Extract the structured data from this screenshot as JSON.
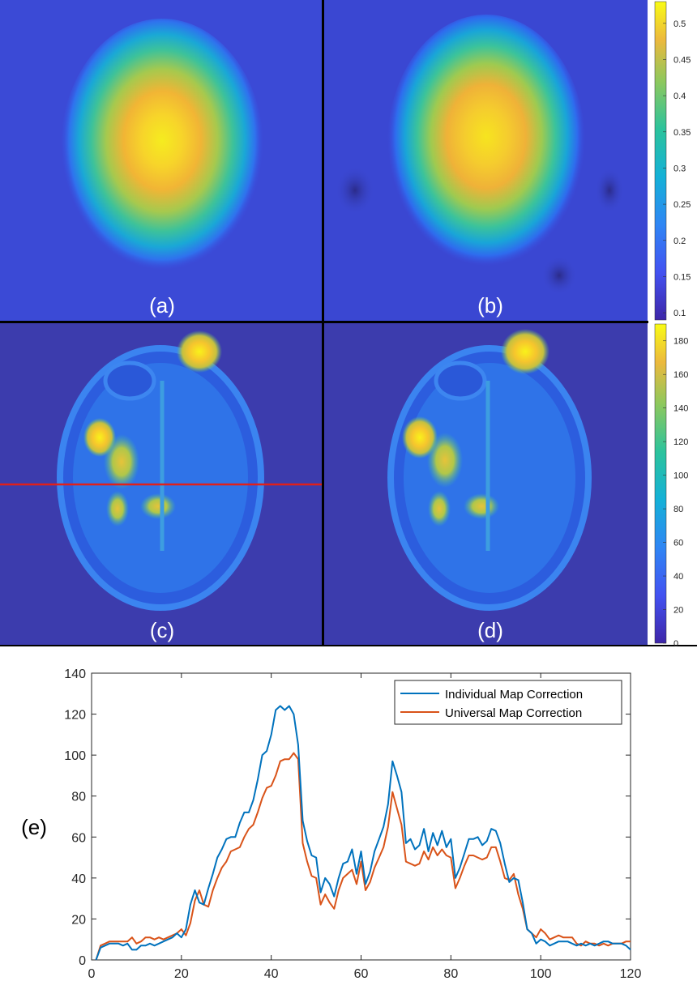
{
  "panels": {
    "a": {
      "label": "(a)"
    },
    "b": {
      "label": "(b)"
    },
    "c": {
      "label": "(c)"
    },
    "d": {
      "label": "(d)"
    },
    "e": {
      "label": "(e)"
    }
  },
  "colorbar_top": {
    "ticks": [
      "0.1",
      "0.15",
      "0.2",
      "0.25",
      "0.3",
      "0.35",
      "0.4",
      "0.45",
      "0.5"
    ],
    "min": 0.09,
    "max": 0.53
  },
  "colorbar_bottom": {
    "ticks": [
      "0",
      "20",
      "40",
      "60",
      "80",
      "100",
      "120",
      "140",
      "160",
      "180"
    ],
    "min": 0,
    "max": 190
  },
  "colors": {
    "individual": "#0072BD",
    "universal": "#D95319",
    "profile_line": "#e0201a",
    "map_background": "#3d3fb0"
  },
  "chart_data": {
    "type": "line",
    "title": "",
    "xlabel": "",
    "ylabel": "",
    "xlim": [
      0,
      120
    ],
    "ylim": [
      0,
      140
    ],
    "xticks": [
      "0",
      "20",
      "40",
      "60",
      "80",
      "100",
      "120"
    ],
    "yticks": [
      "0",
      "20",
      "40",
      "60",
      "80",
      "100",
      "120",
      "140"
    ],
    "legend_position": "top-right",
    "x": [
      1,
      2,
      3,
      4,
      5,
      6,
      7,
      8,
      9,
      10,
      11,
      12,
      13,
      14,
      15,
      16,
      17,
      18,
      19,
      20,
      21,
      22,
      23,
      24,
      25,
      26,
      27,
      28,
      29,
      30,
      31,
      32,
      33,
      34,
      35,
      36,
      37,
      38,
      39,
      40,
      41,
      42,
      43,
      44,
      45,
      46,
      47,
      48,
      49,
      50,
      51,
      52,
      53,
      54,
      55,
      56,
      57,
      58,
      59,
      60,
      61,
      62,
      63,
      64,
      65,
      66,
      67,
      68,
      69,
      70,
      71,
      72,
      73,
      74,
      75,
      76,
      77,
      78,
      79,
      80,
      81,
      82,
      83,
      84,
      85,
      86,
      87,
      88,
      89,
      90,
      91,
      92,
      93,
      94,
      95,
      96,
      97,
      98,
      99,
      100,
      101,
      102,
      103,
      104,
      105,
      106,
      107,
      108,
      109,
      110,
      111,
      112,
      113,
      114,
      115,
      116,
      117,
      118,
      119,
      120
    ],
    "series": [
      {
        "name": "Individual Map Correction",
        "values": [
          0,
          6,
          7,
          8,
          8,
          8,
          7,
          8,
          5,
          5,
          7,
          7,
          8,
          7,
          8,
          9,
          10,
          11,
          13,
          11,
          15,
          27,
          34,
          28,
          27,
          35,
          42,
          50,
          54,
          59,
          60,
          60,
          67,
          72,
          72,
          78,
          88,
          100,
          102,
          110,
          122,
          124,
          122,
          124,
          120,
          105,
          68,
          58,
          51,
          50,
          33,
          40,
          37,
          31,
          40,
          47,
          48,
          54,
          42,
          53,
          37,
          43,
          53,
          59,
          65,
          76,
          97,
          90,
          82,
          57,
          59,
          54,
          56,
          64,
          53,
          62,
          56,
          63,
          55,
          59,
          40,
          45,
          52,
          59,
          59,
          60,
          56,
          58,
          64,
          63,
          57,
          47,
          38,
          40,
          39,
          28,
          15,
          13,
          8,
          10,
          9,
          7,
          8,
          9,
          9,
          9,
          8,
          7,
          8,
          7,
          8,
          7,
          8,
          9,
          9,
          8,
          8,
          8,
          7,
          5
        ]
      },
      {
        "name": "Universal Map Correction",
        "values": [
          0,
          7,
          8,
          9,
          9,
          9,
          9,
          9,
          11,
          8,
          9,
          11,
          11,
          10,
          11,
          10,
          11,
          12,
          13,
          15,
          12,
          18,
          29,
          34,
          27,
          26,
          34,
          40,
          45,
          48,
          53,
          54,
          55,
          60,
          64,
          66,
          72,
          79,
          84,
          85,
          90,
          97,
          98,
          98,
          101,
          98,
          57,
          48,
          41,
          40,
          27,
          32,
          28,
          25,
          34,
          40,
          42,
          44,
          37,
          48,
          34,
          38,
          45,
          50,
          55,
          65,
          82,
          74,
          66,
          48,
          47,
          46,
          47,
          53,
          49,
          55,
          51,
          54,
          51,
          50,
          35,
          40,
          46,
          51,
          51,
          50,
          49,
          50,
          55,
          55,
          48,
          40,
          39,
          42,
          32,
          25,
          15,
          13,
          11,
          15,
          13,
          10,
          11,
          12,
          11,
          11,
          11,
          8,
          7,
          9,
          8,
          8,
          7,
          8,
          7,
          8,
          8,
          8,
          9,
          9
        ]
      }
    ]
  }
}
